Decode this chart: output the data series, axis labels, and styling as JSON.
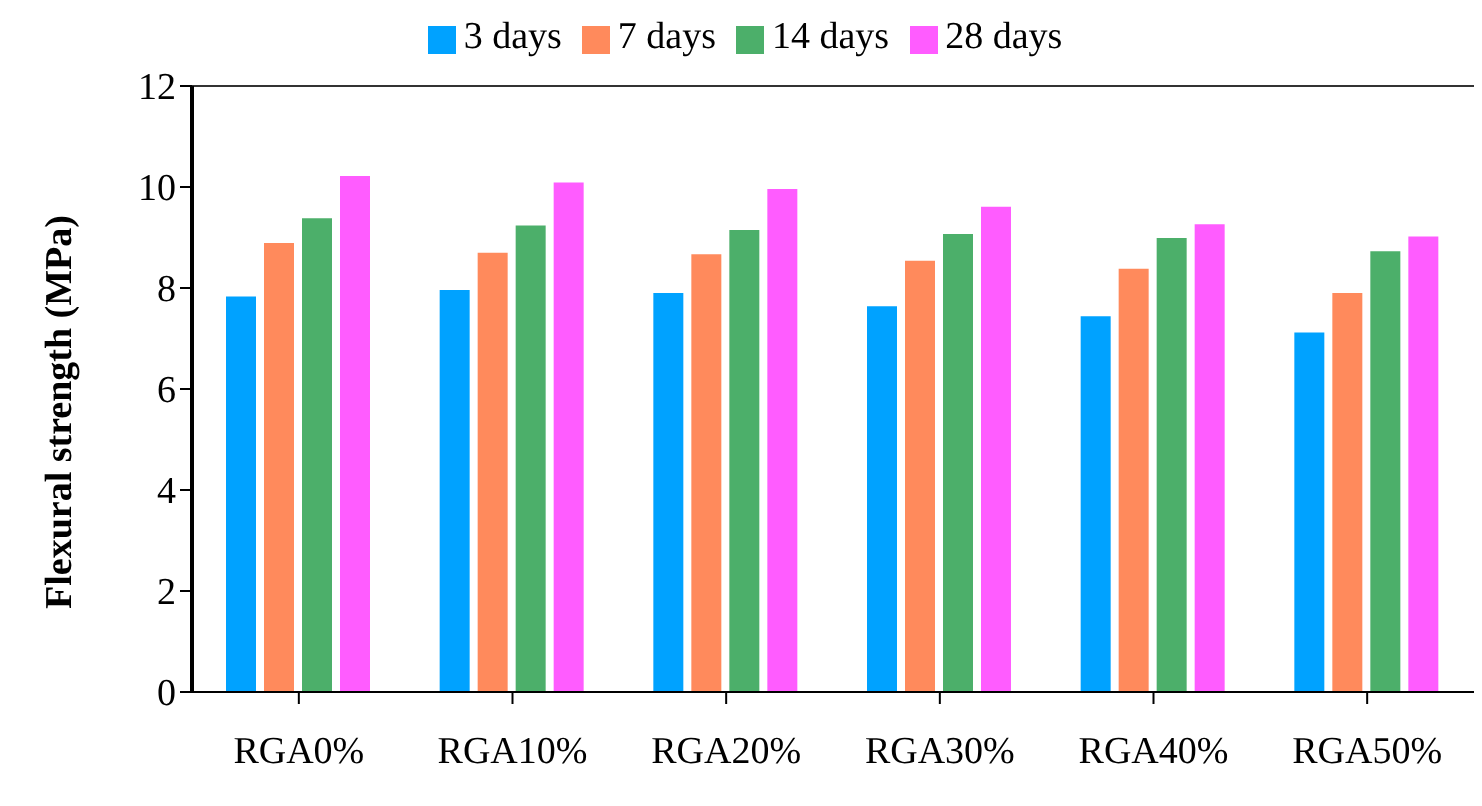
{
  "chart_data": {
    "type": "bar",
    "ylabel": "Flexural strength (MPa)",
    "categories": [
      "RGA0%",
      "RGA10%",
      "RGA20%",
      "RGA30%",
      "RGA40%",
      "RGA50%"
    ],
    "series": [
      {
        "name": "3 days",
        "color": "#00a2ff",
        "values": [
          7.83,
          7.96,
          7.9,
          7.64,
          7.44,
          7.12
        ]
      },
      {
        "name": "7 days",
        "color": "#ff8a5c",
        "values": [
          8.89,
          8.7,
          8.67,
          8.54,
          8.38,
          7.9
        ]
      },
      {
        "name": "14 days",
        "color": "#4caf6a",
        "values": [
          9.38,
          9.24,
          9.15,
          9.07,
          8.99,
          8.73
        ]
      },
      {
        "name": "28 days",
        "color": "#ff5cff",
        "values": [
          10.22,
          10.09,
          9.96,
          9.61,
          9.26,
          9.02
        ]
      }
    ],
    "ylim": [
      0,
      12
    ],
    "yticks": [
      0,
      2,
      4,
      6,
      8,
      10,
      12
    ],
    "grid": false,
    "legend": "top"
  }
}
